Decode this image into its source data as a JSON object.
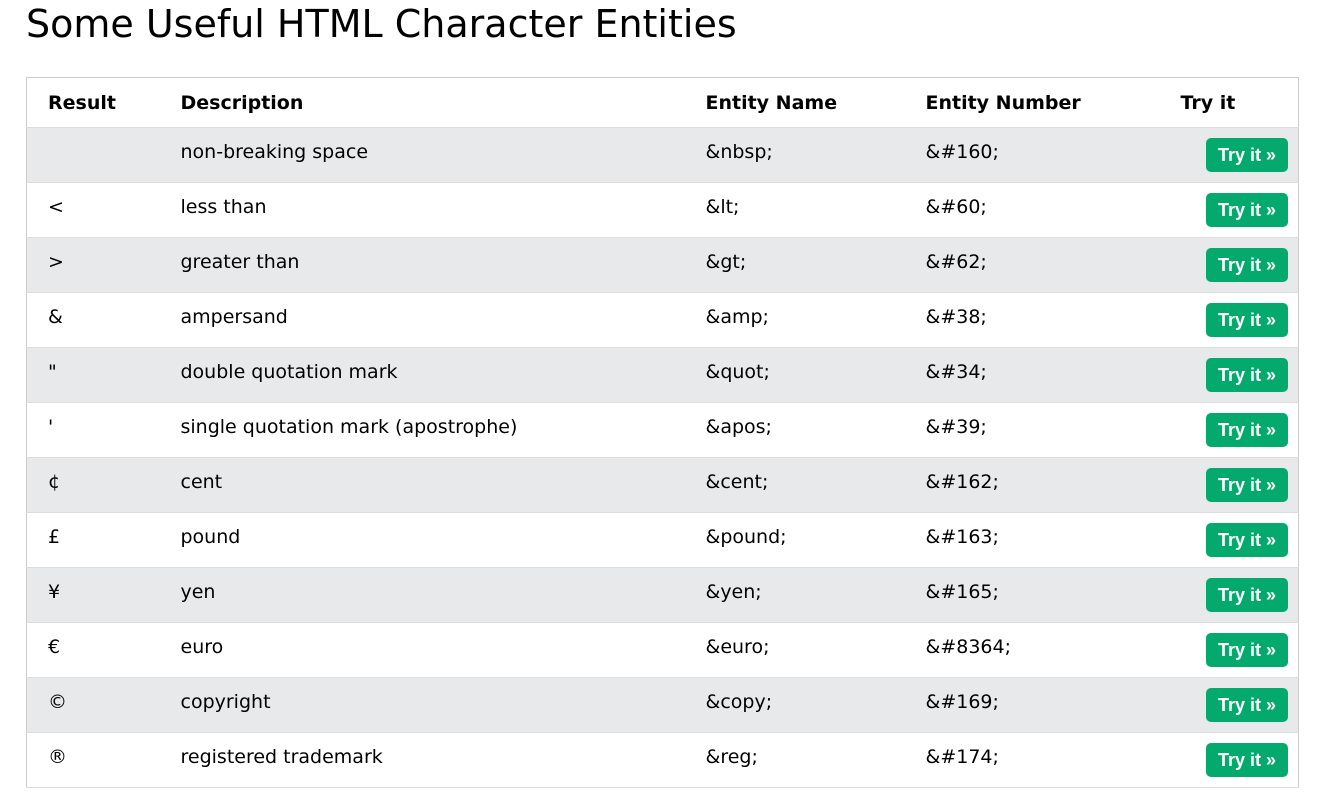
{
  "page": {
    "title": "Some Useful HTML Character Entities"
  },
  "table": {
    "headers": {
      "result": "Result",
      "description": "Description",
      "entity_name": "Entity Name",
      "entity_number": "Entity Number",
      "try_it": "Try it"
    },
    "button_label": "Try it »",
    "button_color": "#04aa6d",
    "rows": [
      {
        "result": " ",
        "description": "non-breaking space",
        "entity_name": "&nbsp;",
        "entity_number": "&#160;"
      },
      {
        "result": "<",
        "description": "less than",
        "entity_name": "&lt;",
        "entity_number": "&#60;"
      },
      {
        "result": ">",
        "description": "greater than",
        "entity_name": "&gt;",
        "entity_number": "&#62;"
      },
      {
        "result": "&",
        "description": "ampersand",
        "entity_name": "&amp;",
        "entity_number": "&#38;"
      },
      {
        "result": "\"",
        "description": "double quotation mark",
        "entity_name": "&quot;",
        "entity_number": "&#34;"
      },
      {
        "result": "'",
        "description": "single quotation mark (apostrophe)",
        "entity_name": "&apos;",
        "entity_number": "&#39;"
      },
      {
        "result": "¢",
        "description": "cent",
        "entity_name": "&cent;",
        "entity_number": "&#162;"
      },
      {
        "result": "£",
        "description": "pound",
        "entity_name": "&pound;",
        "entity_number": "&#163;"
      },
      {
        "result": "¥",
        "description": "yen",
        "entity_name": "&yen;",
        "entity_number": "&#165;"
      },
      {
        "result": "€",
        "description": "euro",
        "entity_name": "&euro;",
        "entity_number": "&#8364;"
      },
      {
        "result": "©",
        "description": "copyright",
        "entity_name": "&copy;",
        "entity_number": "&#169;"
      },
      {
        "result": "®",
        "description": "registered trademark",
        "entity_name": "&reg;",
        "entity_number": "&#174;"
      }
    ]
  }
}
